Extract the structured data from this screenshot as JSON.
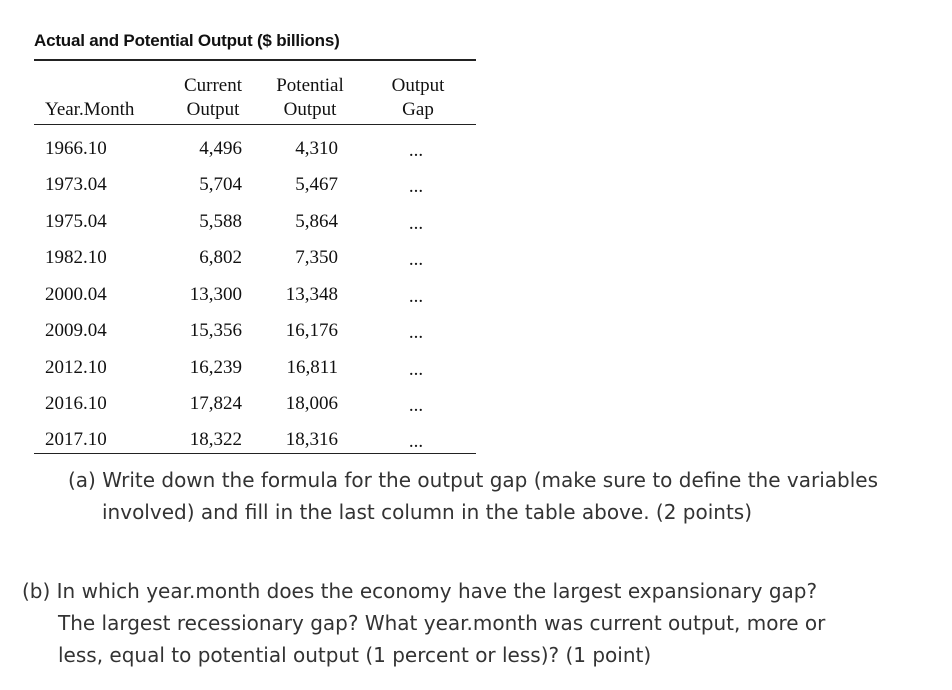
{
  "table": {
    "title": "Actual and Potential Output ($ billions)",
    "headers": {
      "year_month": "Year.Month",
      "current_line1": "Current",
      "current_line2": "Output",
      "potential_line1": "Potential",
      "potential_line2": "Output",
      "gap_line1": "Output",
      "gap_line2": "Gap"
    },
    "rows": [
      {
        "year_month": "1966.10",
        "current": "4,496",
        "potential": "4,310",
        "gap": "..."
      },
      {
        "year_month": "1973.04",
        "current": "5,704",
        "potential": "5,467",
        "gap": "..."
      },
      {
        "year_month": "1975.04",
        "current": "5,588",
        "potential": "5,864",
        "gap": "..."
      },
      {
        "year_month": "1982.10",
        "current": "6,802",
        "potential": "7,350",
        "gap": "..."
      },
      {
        "year_month": "2000.04",
        "current": "13,300",
        "potential": "13,348",
        "gap": "..."
      },
      {
        "year_month": "2009.04",
        "current": "15,356",
        "potential": "16,176",
        "gap": "..."
      },
      {
        "year_month": "2012.10",
        "current": "16,239",
        "potential": "16,811",
        "gap": "..."
      },
      {
        "year_month": "2016.10",
        "current": "17,824",
        "potential": "18,006",
        "gap": "..."
      },
      {
        "year_month": "2017.10",
        "current": "18,322",
        "potential": "18,316",
        "gap": "..."
      }
    ]
  },
  "questions": {
    "a": {
      "line1": "(a) Write down the formula for the output gap (make sure to define the variables",
      "line2": "involved) and fill in the last column in the table above. (2 points)"
    },
    "b": {
      "line1": "(b) In which year.month does the economy have the largest expansionary gap?",
      "line2": "The largest recessionary gap? What year.month was current output, more or",
      "line3": "less, equal to potential output (1 percent or less)? (1 point)"
    }
  }
}
